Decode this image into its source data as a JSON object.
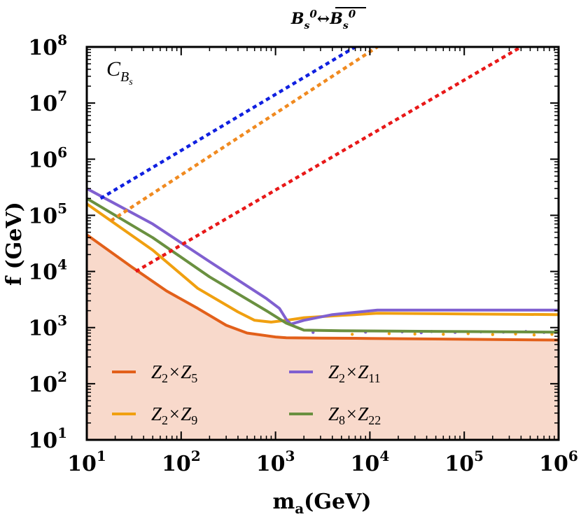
{
  "chart_data": {
    "type": "line",
    "title": "B_s^0 ↔ B̄_s^0",
    "title_parts": {
      "a": "B",
      "a_sub": "s",
      "a_sup": "0",
      "arrow": "↔",
      "b": "B",
      "b_sub": "s",
      "b_sup": "0"
    },
    "panel_label": {
      "main": "C",
      "sub_main": "B",
      "sub_sub": "s"
    },
    "xlabel": "m_a(GeV)",
    "xlabel_parts": {
      "main": "m",
      "sub": "a",
      "rest": "(GeV)"
    },
    "ylabel": "f (GeV)",
    "xscale": "log",
    "yscale": "log",
    "xlim": [
      10,
      1000000
    ],
    "ylim": [
      10,
      100000000
    ],
    "x_ticks": [
      {
        "value": 10,
        "base": "10",
        "exp": "1"
      },
      {
        "value": 100,
        "base": "10",
        "exp": "2"
      },
      {
        "value": 1000,
        "base": "10",
        "exp": "3"
      },
      {
        "value": 10000,
        "base": "10",
        "exp": "4"
      },
      {
        "value": 100000,
        "base": "10",
        "exp": "5"
      },
      {
        "value": 1000000,
        "base": "10",
        "exp": "6"
      }
    ],
    "y_ticks": [
      {
        "value": 10,
        "base": "10",
        "exp": "1"
      },
      {
        "value": 100,
        "base": "10",
        "exp": "2"
      },
      {
        "value": 1000,
        "base": "10",
        "exp": "3"
      },
      {
        "value": 10000,
        "base": "10",
        "exp": "4"
      },
      {
        "value": 100000,
        "base": "10",
        "exp": "5"
      },
      {
        "value": 1000000,
        "base": "10",
        "exp": "6"
      },
      {
        "value": 10000000,
        "base": "10",
        "exp": "7"
      },
      {
        "value": 100000000,
        "base": "10",
        "exp": "8"
      }
    ],
    "excluded_region_color": "#f8d9cb",
    "series": [
      {
        "name": "Z2×Z5",
        "label_parts": [
          "Z",
          "2",
          "×Z",
          "5"
        ],
        "color": "#e2601a",
        "style": "solid",
        "x": [
          10,
          30,
          70,
          150,
          300,
          500,
          1000,
          1300,
          3000,
          10000,
          100000,
          1000000
        ],
        "y": [
          45000,
          12000,
          4500,
          2200,
          1100,
          800,
          680,
          660,
          650,
          640,
          620,
          600
        ]
      },
      {
        "name": "Z2×Z9",
        "label_parts": [
          "Z",
          "2",
          "×Z",
          "9"
        ],
        "color": "#f0a010",
        "style": "solid",
        "x": [
          10,
          50,
          150,
          400,
          600,
          900,
          1300,
          2000,
          5000,
          12000,
          100000,
          1000000
        ],
        "y": [
          160000,
          24000,
          5000,
          1900,
          1350,
          1250,
          1350,
          1500,
          1650,
          1800,
          1750,
          1700
        ]
      },
      {
        "name": "Z2×Z11",
        "label_parts": [
          "Z",
          "2",
          "×Z",
          "11"
        ],
        "color": "#8060d0",
        "style": "solid",
        "x": [
          10,
          50,
          200,
          800,
          1100,
          1300,
          1450,
          2000,
          4000,
          12000,
          100000,
          1000000
        ],
        "y": [
          300000,
          70000,
          15000,
          3300,
          2200,
          1400,
          1150,
          1350,
          1700,
          2050,
          2050,
          2050
        ]
      },
      {
        "name": "Z8×Z22",
        "label_parts": [
          "Z",
          "8",
          "×Z",
          "22"
        ],
        "color": "#6a9040",
        "style": "solid",
        "x": [
          10,
          50,
          200,
          800,
          1300,
          2000,
          5000,
          100000,
          1000000
        ],
        "y": [
          200000,
          40000,
          8000,
          2000,
          1200,
          900,
          880,
          850,
          830
        ]
      },
      {
        "name": "Z2×Z11 projection",
        "color": "#1020e0",
        "style": "dotted",
        "x": [
          14,
          7000
        ],
        "y": [
          200000,
          100000000
        ]
      },
      {
        "name": "Z2×Z9 projection",
        "color": "#f08a20",
        "style": "dotted",
        "x": [
          18,
          12000
        ],
        "y": [
          80000,
          100000000
        ]
      },
      {
        "name": "Z2×Z5 projection",
        "color": "#e81818",
        "style": "dotted",
        "x": [
          33,
          400000
        ],
        "y": [
          10000,
          100000000
        ]
      }
    ],
    "legend": {
      "position": "bottom-left",
      "entries": [
        {
          "label_parts": [
            "Z",
            "2",
            "×Z",
            "5"
          ],
          "color": "#e2601a"
        },
        {
          "label_parts": [
            "Z",
            "2",
            "×Z",
            "11"
          ],
          "color": "#8060d0"
        },
        {
          "label_parts": [
            "Z",
            "2",
            "×Z",
            "9"
          ],
          "color": "#f0a010"
        },
        {
          "label_parts": [
            "Z",
            "8",
            "×Z",
            "22"
          ],
          "color": "#6a9040"
        }
      ]
    },
    "scatter_points": [
      {
        "x": 2500,
        "y": 820,
        "color": "#8060d0"
      },
      {
        "x": 6500,
        "y": 760,
        "color": "#f0a010"
      },
      {
        "x": 9000,
        "y": 830,
        "color": "#8060d0"
      },
      {
        "x": 16000,
        "y": 780,
        "color": "#f0a010"
      },
      {
        "x": 22000,
        "y": 840,
        "color": "#8060d0"
      },
      {
        "x": 30000,
        "y": 770,
        "color": "#f0a010"
      },
      {
        "x": 35000,
        "y": 810,
        "color": "#8060d0"
      },
      {
        "x": 45000,
        "y": 850,
        "color": "#8060d0"
      },
      {
        "x": 60000,
        "y": 760,
        "color": "#f0a010"
      },
      {
        "x": 80000,
        "y": 820,
        "color": "#8060d0"
      },
      {
        "x": 110000,
        "y": 780,
        "color": "#f0a010"
      },
      {
        "x": 150000,
        "y": 840,
        "color": "#8060d0"
      },
      {
        "x": 200000,
        "y": 750,
        "color": "#f0a010"
      },
      {
        "x": 260000,
        "y": 830,
        "color": "#8060d0"
      },
      {
        "x": 350000,
        "y": 770,
        "color": "#f0a010"
      },
      {
        "x": 450000,
        "y": 850,
        "color": "#8060d0"
      },
      {
        "x": 550000,
        "y": 740,
        "color": "#f0a010"
      },
      {
        "x": 700000,
        "y": 820,
        "color": "#8060d0"
      },
      {
        "x": 850000,
        "y": 760,
        "color": "#f0a010"
      },
      {
        "x": 950000,
        "y": 840,
        "color": "#8060d0"
      }
    ]
  }
}
